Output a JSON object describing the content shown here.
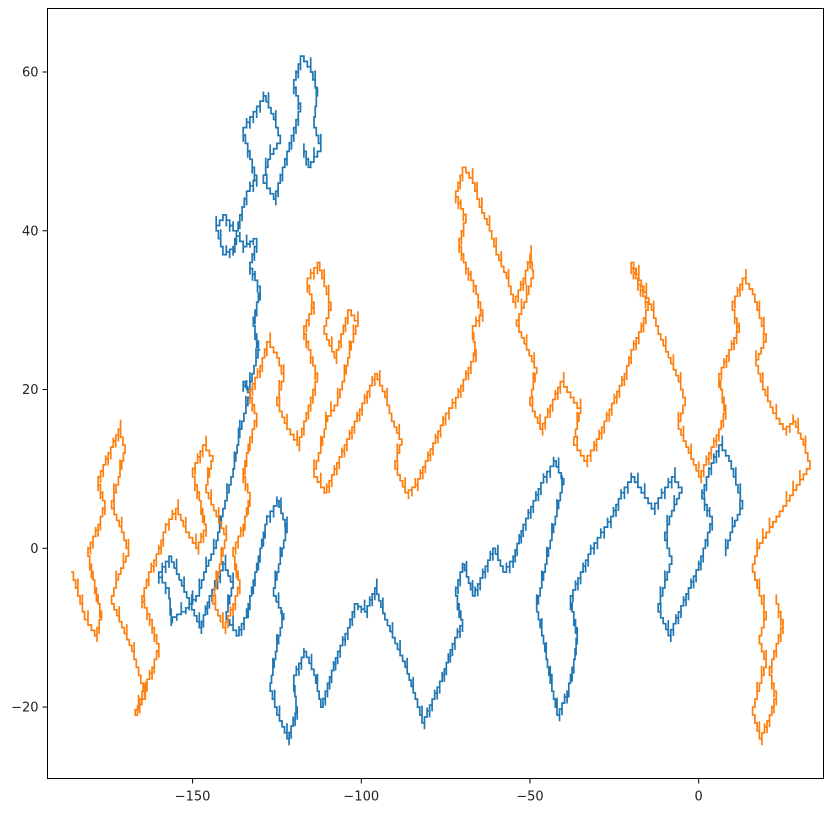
{
  "chart_data": {
    "type": "line",
    "title": "",
    "xlabel": "",
    "ylabel": "",
    "xlim": [
      -193,
      37
    ],
    "ylim": [
      -29,
      68
    ],
    "x_ticks": [
      -150,
      -100,
      -50,
      0
    ],
    "x_tick_labels": [
      "−150",
      "−100",
      "−50",
      "0"
    ],
    "y_ticks": [
      -20,
      0,
      20,
      40,
      60
    ],
    "y_tick_labels": [
      "−20",
      "0",
      "20",
      "40",
      "60"
    ],
    "grid": false,
    "legend": "none",
    "series": [
      {
        "color": "#1f77b4",
        "points": [
          [
            -130,
            25
          ],
          [
            -133,
            20
          ],
          [
            -135,
            21
          ],
          [
            -133,
            19
          ],
          [
            -136,
            14
          ],
          [
            -138,
            9
          ],
          [
            -141,
            4
          ],
          [
            -143,
            0
          ],
          [
            -146,
            -3
          ],
          [
            -148,
            -6
          ],
          [
            -152,
            -8
          ],
          [
            -156,
            -9
          ],
          [
            -157,
            -5
          ],
          [
            -160,
            -3
          ],
          [
            -157,
            -1
          ],
          [
            -154,
            -4
          ],
          [
            -151,
            -7
          ],
          [
            -148,
            -10
          ],
          [
            -145,
            -6
          ],
          [
            -141,
            -2
          ],
          [
            -138,
            -5
          ],
          [
            -140,
            -9
          ],
          [
            -137,
            -11
          ],
          [
            -134,
            -8
          ],
          [
            -132,
            -4
          ],
          [
            -130,
            0
          ],
          [
            -128,
            4
          ],
          [
            -125,
            6
          ],
          [
            -122,
            2
          ],
          [
            -124,
            -2
          ],
          [
            -126,
            -6
          ],
          [
            -123,
            -9
          ],
          [
            -125,
            -13
          ],
          [
            -127,
            -18
          ],
          [
            -125,
            -21
          ],
          [
            -122,
            -24
          ],
          [
            -119,
            -20
          ],
          [
            -120,
            -16
          ],
          [
            -117,
            -13
          ],
          [
            -114,
            -16
          ],
          [
            -112,
            -20
          ],
          [
            -110,
            -17
          ],
          [
            -107,
            -13
          ],
          [
            -104,
            -10
          ],
          [
            -102,
            -7
          ],
          [
            -99,
            -8
          ],
          [
            -96,
            -5
          ],
          [
            -93,
            -9
          ],
          [
            -90,
            -12
          ],
          [
            -87,
            -15
          ],
          [
            -84,
            -19
          ],
          [
            -82,
            -22
          ],
          [
            -79,
            -19
          ],
          [
            -76,
            -16
          ],
          [
            -73,
            -12
          ],
          [
            -70,
            -9
          ],
          [
            -72,
            -5
          ],
          [
            -70,
            -2
          ],
          [
            -67,
            -6
          ],
          [
            -64,
            -3
          ],
          [
            -61,
            0
          ],
          [
            -58,
            -3
          ],
          [
            -55,
            -1
          ],
          [
            -52,
            3
          ],
          [
            -49,
            6
          ],
          [
            -46,
            9
          ],
          [
            -43,
            11
          ],
          [
            -40,
            8
          ],
          [
            -42,
            4
          ],
          [
            -44,
            0
          ],
          [
            -46,
            -4
          ],
          [
            -48,
            -8
          ],
          [
            -46,
            -12
          ],
          [
            -44,
            -17
          ],
          [
            -42,
            -21
          ],
          [
            -39,
            -18
          ],
          [
            -37,
            -14
          ],
          [
            -36,
            -10
          ],
          [
            -38,
            -6
          ],
          [
            -35,
            -3
          ],
          [
            -32,
            0
          ],
          [
            -29,
            2
          ],
          [
            -26,
            4
          ],
          [
            -23,
            7
          ],
          [
            -20,
            9
          ],
          [
            -17,
            7
          ],
          [
            -14,
            5
          ],
          [
            -11,
            7
          ],
          [
            -8,
            9
          ],
          [
            -5,
            7
          ],
          [
            -8,
            4
          ],
          [
            -10,
            1
          ],
          [
            -8,
            -2
          ],
          [
            -10,
            -5
          ],
          [
            -12,
            -8
          ],
          [
            -9,
            -11
          ],
          [
            -6,
            -8
          ],
          [
            -3,
            -5
          ],
          [
            0,
            -2
          ],
          [
            2,
            1
          ],
          [
            4,
            4
          ],
          [
            1,
            7
          ],
          [
            3,
            10
          ],
          [
            6,
            13
          ],
          [
            9,
            11
          ],
          [
            11,
            8
          ],
          [
            13,
            5
          ],
          [
            10,
            2
          ],
          [
            8,
            -1
          ]
        ]
      },
      {
        "color": "#1f77b4",
        "points": [
          [
            -130,
            25
          ],
          [
            -132,
            29
          ],
          [
            -130,
            33
          ],
          [
            -133,
            36
          ],
          [
            -131,
            39
          ],
          [
            -134,
            38
          ],
          [
            -137,
            40
          ],
          [
            -140,
            42
          ],
          [
            -143,
            40
          ],
          [
            -141,
            37
          ],
          [
            -138,
            38
          ],
          [
            -136,
            42
          ],
          [
            -134,
            45
          ],
          [
            -131,
            47
          ],
          [
            -133,
            50
          ],
          [
            -135,
            53
          ],
          [
            -132,
            55
          ],
          [
            -129,
            57
          ],
          [
            -126,
            54
          ],
          [
            -124,
            51
          ],
          [
            -127,
            49
          ],
          [
            -129,
            46
          ],
          [
            -126,
            44
          ],
          [
            -124,
            47
          ],
          [
            -122,
            50
          ],
          [
            -120,
            53
          ],
          [
            -118,
            56
          ],
          [
            -120,
            59
          ],
          [
            -118,
            62
          ],
          [
            -115,
            60
          ],
          [
            -113,
            57
          ],
          [
            -114,
            53
          ],
          [
            -112,
            50
          ],
          [
            -115,
            48
          ],
          [
            -117,
            51
          ]
        ]
      },
      {
        "color": "#ff7f0e",
        "points": [
          [
            -186,
            -3
          ],
          [
            -184,
            -6
          ],
          [
            -182,
            -9
          ],
          [
            -179,
            -11
          ],
          [
            -177,
            -8
          ],
          [
            -179,
            -4
          ],
          [
            -181,
            0
          ],
          [
            -178,
            3
          ],
          [
            -176,
            6
          ],
          [
            -178,
            9
          ],
          [
            -175,
            12
          ],
          [
            -172,
            15
          ],
          [
            -170,
            12
          ],
          [
            -172,
            8
          ],
          [
            -174,
            5
          ],
          [
            -171,
            2
          ],
          [
            -169,
            -1
          ],
          [
            -172,
            -4
          ],
          [
            -174,
            -7
          ],
          [
            -171,
            -10
          ],
          [
            -168,
            -13
          ],
          [
            -166,
            -16
          ],
          [
            -164,
            -19
          ],
          [
            -167,
            -21
          ],
          [
            -165,
            -18
          ],
          [
            -162,
            -15
          ],
          [
            -160,
            -12
          ],
          [
            -162,
            -9
          ],
          [
            -165,
            -6
          ],
          [
            -163,
            -3
          ],
          [
            -160,
            0
          ],
          [
            -158,
            3
          ],
          [
            -155,
            5
          ],
          [
            -152,
            2
          ],
          [
            -149,
            0
          ],
          [
            -146,
            3
          ],
          [
            -148,
            7
          ],
          [
            -150,
            10
          ],
          [
            -147,
            13
          ],
          [
            -144,
            11
          ],
          [
            -146,
            7
          ],
          [
            -143,
            4
          ],
          [
            -140,
            1
          ],
          [
            -142,
            -3
          ],
          [
            -144,
            -7
          ],
          [
            -141,
            -10
          ],
          [
            -138,
            -7
          ],
          [
            -136,
            -4
          ],
          [
            -138,
            0
          ],
          [
            -135,
            3
          ],
          [
            -133,
            7
          ],
          [
            -135,
            10
          ],
          [
            -133,
            14
          ],
          [
            -131,
            17
          ],
          [
            -133,
            20
          ],
          [
            -130,
            23
          ],
          [
            -128,
            26
          ],
          [
            -125,
            24
          ],
          [
            -123,
            21
          ],
          [
            -125,
            18
          ],
          [
            -122,
            15
          ],
          [
            -119,
            13
          ],
          [
            -117,
            16
          ],
          [
            -115,
            19
          ],
          [
            -113,
            22
          ],
          [
            -115,
            25
          ],
          [
            -117,
            28
          ],
          [
            -114,
            31
          ],
          [
            -116,
            34
          ],
          [
            -113,
            36
          ],
          [
            -111,
            33
          ],
          [
            -109,
            30
          ],
          [
            -111,
            27
          ],
          [
            -108,
            24
          ],
          [
            -106,
            27
          ],
          [
            -104,
            30
          ],
          [
            -101,
            28
          ],
          [
            -103,
            25
          ],
          [
            -105,
            21
          ],
          [
            -107,
            18
          ],
          [
            -110,
            16
          ],
          [
            -112,
            12
          ],
          [
            -114,
            9
          ],
          [
            -111,
            7
          ],
          [
            -108,
            10
          ],
          [
            -105,
            13
          ],
          [
            -102,
            16
          ],
          [
            -99,
            19
          ],
          [
            -96,
            22
          ],
          [
            -93,
            19
          ],
          [
            -91,
            16
          ],
          [
            -88,
            13
          ],
          [
            -90,
            10
          ],
          [
            -87,
            7
          ],
          [
            -84,
            8
          ],
          [
            -81,
            11
          ],
          [
            -78,
            14
          ],
          [
            -75,
            17
          ],
          [
            -72,
            19
          ],
          [
            -69,
            22
          ],
          [
            -66,
            25
          ],
          [
            -67,
            28
          ],
          [
            -64,
            30
          ],
          [
            -66,
            33
          ],
          [
            -69,
            36
          ],
          [
            -71,
            39
          ],
          [
            -69,
            42
          ],
          [
            -72,
            45
          ],
          [
            -70,
            48
          ],
          [
            -67,
            46
          ],
          [
            -65,
            43
          ],
          [
            -62,
            40
          ],
          [
            -60,
            37
          ],
          [
            -57,
            34
          ],
          [
            -55,
            31
          ],
          [
            -52,
            34
          ],
          [
            -50,
            37
          ],
          [
            -49,
            34
          ],
          [
            -51,
            31
          ],
          [
            -54,
            28
          ],
          [
            -51,
            25
          ],
          [
            -48,
            22
          ],
          [
            -50,
            18
          ],
          [
            -47,
            15
          ],
          [
            -44,
            18
          ],
          [
            -41,
            21
          ],
          [
            -38,
            19
          ],
          [
            -35,
            17
          ],
          [
            -37,
            13
          ],
          [
            -34,
            11
          ],
          [
            -31,
            13
          ],
          [
            -28,
            16
          ],
          [
            -25,
            19
          ],
          [
            -22,
            22
          ],
          [
            -20,
            25
          ],
          [
            -17,
            28
          ],
          [
            -15,
            31
          ],
          [
            -18,
            34
          ],
          [
            -20,
            36
          ],
          [
            -17,
            33
          ],
          [
            -14,
            30
          ],
          [
            -12,
            27
          ],
          [
            -9,
            24
          ],
          [
            -6,
            21
          ],
          [
            -4,
            18
          ],
          [
            -6,
            15
          ],
          [
            -3,
            12
          ],
          [
            0,
            9
          ],
          [
            3,
            12
          ],
          [
            6,
            15
          ],
          [
            8,
            18
          ],
          [
            6,
            22
          ],
          [
            9,
            25
          ],
          [
            12,
            28
          ],
          [
            10,
            31
          ],
          [
            13,
            34
          ],
          [
            16,
            32
          ],
          [
            18,
            29
          ],
          [
            20,
            26
          ],
          [
            17,
            23
          ],
          [
            19,
            20
          ],
          [
            22,
            17
          ],
          [
            25,
            15
          ],
          [
            28,
            16
          ],
          [
            31,
            13
          ],
          [
            33,
            10
          ],
          [
            30,
            8
          ],
          [
            27,
            6
          ],
          [
            24,
            4
          ],
          [
            21,
            2
          ],
          [
            18,
            0
          ],
          [
            16,
            -3
          ],
          [
            18,
            -6
          ],
          [
            20,
            -9
          ],
          [
            18,
            -12
          ],
          [
            20,
            -15
          ],
          [
            18,
            -18
          ],
          [
            16,
            -21
          ],
          [
            18,
            -24
          ],
          [
            21,
            -21
          ],
          [
            23,
            -18
          ],
          [
            21,
            -15
          ],
          [
            23,
            -12
          ],
          [
            25,
            -9
          ],
          [
            23,
            -6
          ]
        ]
      }
    ]
  }
}
